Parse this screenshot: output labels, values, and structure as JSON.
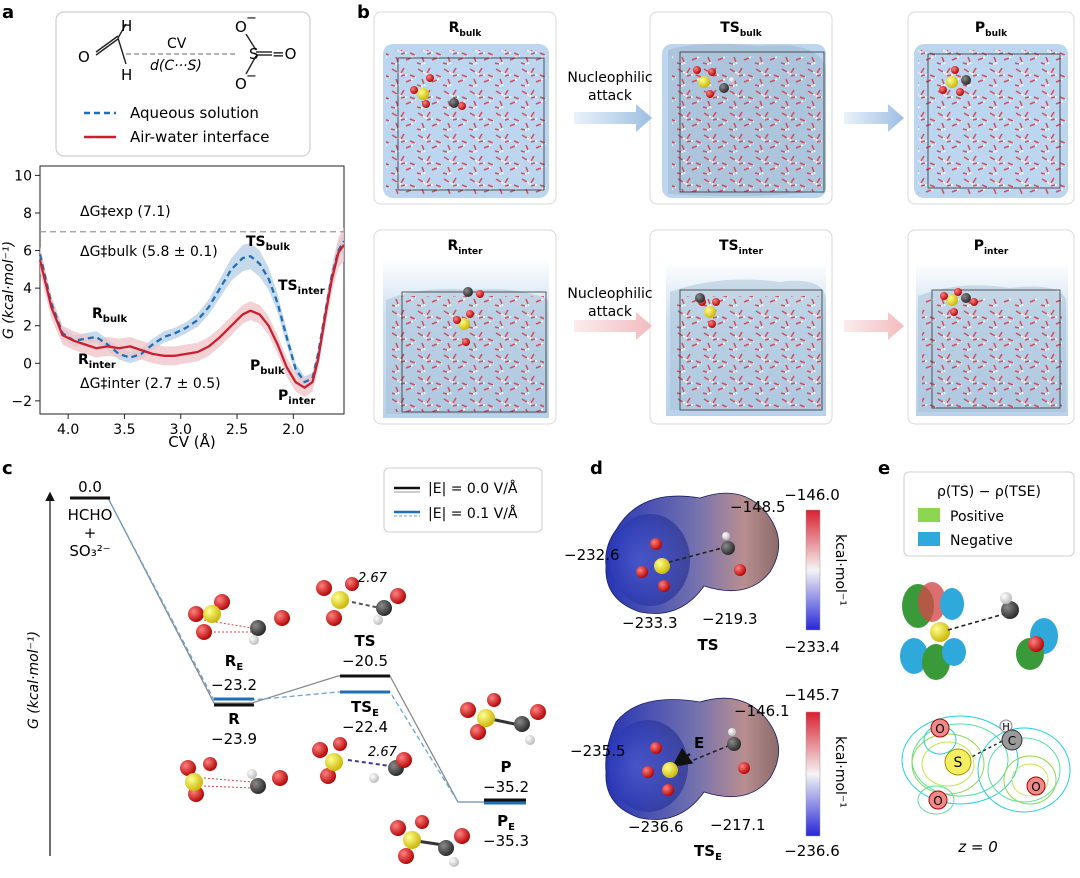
{
  "panels": {
    "a": "a",
    "b": "b",
    "c": "c",
    "d": "d",
    "e": "e"
  },
  "a": {
    "scheme": {
      "h1": "H",
      "h2": "H",
      "cv_label": "CV",
      "dist_label": "d(C···S)",
      "o_top": "O",
      "o_top_charge": "−",
      "o_right": "=O",
      "o_bottom": "O",
      "o_bottom_charge": "−",
      "s": "S",
      "o_left": "O"
    },
    "legend": [
      {
        "label": "Aqueous solution",
        "color": "#1f6fb4",
        "style": "dashed"
      },
      {
        "label": "Air-water interface",
        "color": "#c8202f",
        "style": "solid"
      }
    ],
    "annotations": {
      "dg_exp": "ΔG‡exp (7.1)",
      "dg_bulk": "ΔG‡bulk (5.8 ± 0.1)",
      "dg_inter": "ΔG‡inter (2.7 ± 0.5)",
      "ts_bulk": "TS",
      "ts_bulk_sub": "bulk",
      "ts_inter": "TS",
      "ts_inter_sub": "inter",
      "r_bulk": "R",
      "r_bulk_sub": "bulk",
      "r_inter": "R",
      "r_inter_sub": "inter",
      "p_bulk": "P",
      "p_bulk_sub": "bulk",
      "p_inter": "P",
      "p_inter_sub": "inter"
    }
  },
  "chart_data": {
    "type": "line",
    "title": "",
    "xlabel": "CV (Å)",
    "ylabel": "G (kcal·mol⁻¹)",
    "xlim": [
      4.25,
      1.55
    ],
    "ylim": [
      -2.7,
      10.5
    ],
    "xticks": [
      "4.0",
      "3.5",
      "3.0",
      "2.5",
      "2.0"
    ],
    "yticks": [
      "−2",
      "0",
      "2",
      "4",
      "6",
      "8",
      "10"
    ],
    "reference_line": {
      "y": 7.0,
      "label": "ΔG‡exp (7.1)",
      "style": "dashed",
      "color": "#999999"
    },
    "series": [
      {
        "name": "Aqueous solution",
        "color": "#1f6fb4",
        "style": "dashed",
        "uncertainty_color": "#b3cde6",
        "x": [
          4.25,
          4.15,
          4.05,
          3.95,
          3.85,
          3.75,
          3.65,
          3.55,
          3.45,
          3.35,
          3.25,
          3.15,
          3.05,
          2.95,
          2.85,
          2.75,
          2.65,
          2.55,
          2.45,
          2.38,
          2.3,
          2.22,
          2.14,
          2.06,
          1.98,
          1.9,
          1.83,
          1.78,
          1.72,
          1.66,
          1.6,
          1.55
        ],
        "y": [
          5.8,
          3.2,
          1.6,
          1.2,
          1.3,
          1.4,
          1.0,
          0.5,
          0.3,
          0.5,
          1.0,
          1.4,
          1.6,
          1.9,
          2.3,
          3.0,
          4.0,
          5.0,
          5.6,
          5.7,
          5.3,
          4.5,
          3.2,
          1.4,
          -0.3,
          -1.0,
          -0.8,
          0.5,
          2.6,
          4.6,
          6.0,
          6.5
        ],
        "uncertainty": [
          0.3,
          0.3,
          0.3,
          0.3,
          0.3,
          0.3,
          0.3,
          0.3,
          0.3,
          0.3,
          0.3,
          0.3,
          0.3,
          0.3,
          0.35,
          0.4,
          0.5,
          0.6,
          0.7,
          0.7,
          0.7,
          0.6,
          0.5,
          0.4,
          0.3,
          0.3,
          0.3,
          0.3,
          0.35,
          0.4,
          0.5,
          0.5
        ]
      },
      {
        "name": "Air-water interface",
        "color": "#c8202f",
        "style": "solid",
        "uncertainty_color": "#efc3c8",
        "x": [
          4.25,
          4.15,
          4.05,
          3.95,
          3.85,
          3.75,
          3.65,
          3.55,
          3.45,
          3.35,
          3.25,
          3.15,
          3.05,
          2.95,
          2.85,
          2.75,
          2.65,
          2.55,
          2.45,
          2.38,
          2.3,
          2.22,
          2.14,
          2.06,
          1.98,
          1.9,
          1.83,
          1.78,
          1.72,
          1.66,
          1.6,
          1.55
        ],
        "y": [
          5.5,
          3.0,
          1.5,
          1.2,
          1.0,
          0.8,
          0.9,
          0.8,
          0.9,
          0.7,
          0.5,
          0.4,
          0.4,
          0.5,
          0.6,
          0.9,
          1.4,
          2.0,
          2.6,
          2.8,
          2.6,
          2.0,
          1.0,
          -0.2,
          -1.0,
          -1.3,
          -1.0,
          0.2,
          2.4,
          4.4,
          5.9,
          6.3
        ],
        "uncertainty": [
          0.7,
          0.6,
          0.5,
          0.5,
          0.5,
          0.5,
          0.5,
          0.5,
          0.5,
          0.5,
          0.5,
          0.5,
          0.5,
          0.5,
          0.5,
          0.5,
          0.5,
          0.5,
          0.5,
          0.5,
          0.5,
          0.5,
          0.5,
          0.5,
          0.5,
          0.5,
          0.5,
          0.5,
          0.6,
          0.7,
          0.8,
          0.9
        ]
      }
    ]
  },
  "b": {
    "boxes": [
      {
        "label": "R",
        "sub": "bulk"
      },
      {
        "label": "TS",
        "sub": "bulk"
      },
      {
        "label": "P",
        "sub": "bulk"
      },
      {
        "label": "R",
        "sub": "inter"
      },
      {
        "label": "TS",
        "sub": "inter"
      },
      {
        "label": "P",
        "sub": "inter"
      }
    ],
    "arrow_text_1": "Nucleophilic",
    "arrow_text_2": "attack",
    "arrow_color_bulk": "#9dbfe2",
    "arrow_color_inter": "#f2bcc0",
    "water_color_bulk": "#bcd6ef",
    "water_color_inter": "#c9dcee"
  },
  "c": {
    "ylabel": "G (kcal·mol⁻¹)",
    "legend": [
      {
        "label": "|E| = 0.0 V/Å",
        "color": "#111111"
      },
      {
        "label": "|E| = 0.1 V/Å",
        "color": "#1f6fb4"
      }
    ],
    "start_value": "0.0",
    "reactants": [
      "HCHO",
      "+",
      "SO₃²⁻"
    ],
    "r_e_label": "R",
    "r_e_sub": "E",
    "r_e_value": "−23.2",
    "r_label": "R",
    "r_value": "−23.9",
    "ts_label": "TS",
    "ts_value": "−20.5",
    "ts_e_label": "TS",
    "ts_e_sub": "E",
    "ts_e_value": "−22.4",
    "p_label": "P",
    "p_value": "−35.2",
    "p_e_label": "P",
    "p_e_sub": "E",
    "p_e_value": "−35.3",
    "dist_1": "2.67",
    "dist_2": "2.67"
  },
  "d": {
    "top": {
      "v1": "−148.5",
      "v2": "−232.6",
      "v3": "−233.3",
      "v4": "−219.3",
      "label": "TS",
      "cb_max": "−146.0",
      "cb_min": "−233.4",
      "cb_unit": "kcal·mol⁻¹"
    },
    "bottom": {
      "v1": "−146.1",
      "v2": "−235.5",
      "v3": "−236.6",
      "v4": "−217.1",
      "label": "TS",
      "label_sub": "E",
      "field_label": "E",
      "cb_max": "−145.7",
      "cb_min": "−236.6",
      "cb_unit": "kcal·mol⁻¹"
    }
  },
  "e": {
    "title": "ρ(TS) − ρ(TSE)",
    "legend": [
      {
        "label": "Positive",
        "color": "#8fd650"
      },
      {
        "label": "Negative",
        "color": "#2fa8dc"
      }
    ],
    "atoms": {
      "o1": "O",
      "o2": "O",
      "o3": "O",
      "s": "S",
      "h": "H",
      "c": "C"
    },
    "plane": "z = 0"
  }
}
